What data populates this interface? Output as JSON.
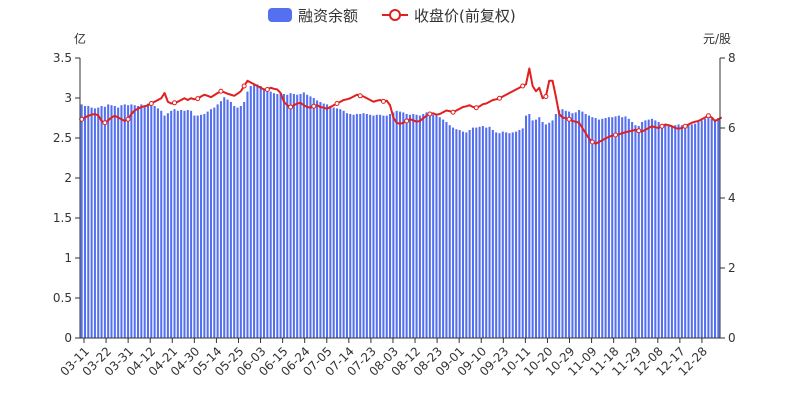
{
  "legend": {
    "bar_label": "融资余额",
    "line_label": "收盘价(前复权)"
  },
  "axes": {
    "left_unit": "亿",
    "right_unit": "元/股"
  },
  "colors": {
    "bar": "#5470f0",
    "line": "#e01f1f",
    "axis": "#333333"
  },
  "chart_data": {
    "type": "bar",
    "title": "",
    "left_axis": {
      "label": "亿",
      "min": 0,
      "max": 3.5,
      "ticks": [
        0,
        0.5,
        1,
        1.5,
        2,
        2.5,
        3,
        3.5
      ]
    },
    "right_axis": {
      "label": "元/股",
      "min": 0,
      "max": 8,
      "ticks": [
        0,
        2,
        4,
        6,
        8
      ]
    },
    "x_tick_labels": [
      "03-11",
      "03-22",
      "03-31",
      "04-12",
      "04-21",
      "04-30",
      "05-14",
      "05-25",
      "06-03",
      "06-15",
      "06-24",
      "07-05",
      "07-14",
      "07-23",
      "08-03",
      "08-12",
      "08-23",
      "09-01",
      "09-10",
      "09-23",
      "10-11",
      "10-20",
      "10-29",
      "11-09",
      "11-18",
      "11-29",
      "12-08",
      "12-17",
      "12-28"
    ],
    "grid": false,
    "legend_position": "top-center",
    "series": [
      {
        "name": "融资余额",
        "type": "bar",
        "axis": "left",
        "values": [
          2.92,
          2.9,
          2.9,
          2.88,
          2.87,
          2.88,
          2.9,
          2.89,
          2.92,
          2.91,
          2.9,
          2.88,
          2.91,
          2.92,
          2.91,
          2.92,
          2.91,
          2.9,
          2.92,
          2.91,
          2.93,
          2.92,
          2.9,
          2.87,
          2.84,
          2.78,
          2.81,
          2.84,
          2.86,
          2.84,
          2.85,
          2.84,
          2.85,
          2.84,
          2.78,
          2.78,
          2.79,
          2.8,
          2.83,
          2.86,
          2.88,
          2.92,
          2.96,
          3.01,
          2.98,
          2.95,
          2.9,
          2.88,
          2.9,
          2.95,
          3.08,
          3.15,
          3.18,
          3.17,
          3.15,
          3.12,
          3.1,
          3.08,
          3.06,
          3.05,
          3.06,
          3.05,
          3.04,
          3.06,
          3.05,
          3.04,
          3.05,
          3.07,
          3.04,
          3.02,
          3.0,
          2.97,
          2.95,
          2.93,
          2.92,
          2.9,
          2.88,
          2.87,
          2.86,
          2.84,
          2.81,
          2.8,
          2.79,
          2.8,
          2.8,
          2.81,
          2.8,
          2.79,
          2.78,
          2.79,
          2.79,
          2.78,
          2.78,
          2.8,
          2.82,
          2.84,
          2.83,
          2.82,
          2.8,
          2.79,
          2.8,
          2.79,
          2.78,
          2.8,
          2.82,
          2.8,
          2.79,
          2.78,
          2.76,
          2.73,
          2.7,
          2.66,
          2.63,
          2.61,
          2.6,
          2.58,
          2.57,
          2.6,
          2.63,
          2.63,
          2.64,
          2.65,
          2.63,
          2.64,
          2.6,
          2.57,
          2.56,
          2.58,
          2.57,
          2.56,
          2.57,
          2.58,
          2.6,
          2.62,
          2.78,
          2.8,
          2.72,
          2.73,
          2.76,
          2.7,
          2.67,
          2.69,
          2.72,
          2.8,
          2.85,
          2.86,
          2.84,
          2.83,
          2.81,
          2.82,
          2.85,
          2.83,
          2.8,
          2.78,
          2.76,
          2.75,
          2.73,
          2.74,
          2.75,
          2.76,
          2.76,
          2.77,
          2.78,
          2.76,
          2.77,
          2.74,
          2.7,
          2.66,
          2.65,
          2.7,
          2.72,
          2.73,
          2.74,
          2.72,
          2.7,
          2.67,
          2.66,
          2.65,
          2.65,
          2.66,
          2.67,
          2.66,
          2.65,
          2.66,
          2.67,
          2.68,
          2.7,
          2.72,
          2.74,
          2.75,
          2.74,
          2.73,
          2.75
        ]
      },
      {
        "name": "收盘价(前复权)",
        "type": "line",
        "axis": "right",
        "values": [
          6.25,
          6.3,
          6.35,
          6.38,
          6.4,
          6.36,
          6.2,
          6.15,
          6.22,
          6.3,
          6.35,
          6.3,
          6.25,
          6.2,
          6.25,
          6.4,
          6.5,
          6.55,
          6.6,
          6.62,
          6.65,
          6.7,
          6.75,
          6.8,
          6.85,
          7.0,
          6.75,
          6.7,
          6.72,
          6.75,
          6.8,
          6.85,
          6.8,
          6.85,
          6.82,
          6.84,
          6.9,
          6.95,
          6.92,
          6.88,
          6.94,
          7.0,
          7.05,
          7.02,
          6.98,
          6.95,
          6.92,
          6.98,
          7.05,
          7.2,
          7.35,
          7.3,
          7.25,
          7.2,
          7.15,
          7.1,
          7.1,
          7.15,
          7.12,
          7.1,
          7.0,
          6.75,
          6.65,
          6.6,
          6.65,
          6.7,
          6.72,
          6.65,
          6.6,
          6.58,
          6.62,
          6.65,
          6.6,
          6.58,
          6.55,
          6.6,
          6.65,
          6.7,
          6.75,
          6.8,
          6.82,
          6.85,
          6.9,
          6.95,
          6.92,
          6.9,
          6.85,
          6.8,
          6.75,
          6.78,
          6.8,
          6.76,
          6.78,
          6.65,
          6.3,
          6.15,
          6.12,
          6.15,
          6.2,
          6.25,
          6.22,
          6.18,
          6.2,
          6.28,
          6.35,
          6.4,
          6.42,
          6.38,
          6.4,
          6.45,
          6.5,
          6.48,
          6.45,
          6.5,
          6.55,
          6.6,
          6.62,
          6.65,
          6.6,
          6.58,
          6.62,
          6.68,
          6.7,
          6.75,
          6.8,
          6.82,
          6.85,
          6.9,
          6.95,
          7.0,
          7.05,
          7.1,
          7.15,
          7.2,
          7.25,
          7.7,
          7.2,
          7.05,
          7.15,
          6.85,
          6.9,
          7.35,
          7.35,
          6.9,
          6.4,
          6.3,
          6.28,
          6.25,
          6.2,
          6.18,
          6.15,
          6.0,
          5.85,
          5.7,
          5.6,
          5.55,
          5.6,
          5.65,
          5.7,
          5.75,
          5.78,
          5.8,
          5.82,
          5.85,
          5.88,
          5.9,
          5.92,
          5.95,
          5.92,
          5.9,
          5.95,
          6.0,
          6.05,
          6.02,
          6.0,
          6.05,
          6.1,
          6.08,
          6.05,
          6.0,
          5.98,
          6.0,
          6.05,
          6.1,
          6.15,
          6.18,
          6.2,
          6.25,
          6.3,
          6.35,
          6.3,
          6.2,
          6.25,
          6.3
        ]
      }
    ]
  }
}
